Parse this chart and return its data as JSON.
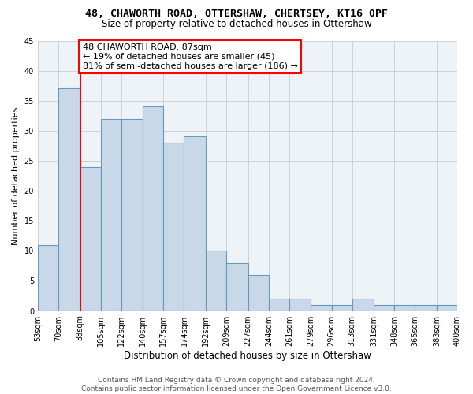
{
  "title1": "48, CHAWORTH ROAD, OTTERSHAW, CHERTSEY, KT16 0PF",
  "title2": "Size of property relative to detached houses in Ottershaw",
  "xlabel": "Distribution of detached houses by size in Ottershaw",
  "ylabel": "Number of detached properties",
  "bar_edges": [
    53,
    70,
    88,
    105,
    122,
    140,
    157,
    174,
    192,
    209,
    227,
    244,
    261,
    279,
    296,
    313,
    331,
    348,
    365,
    383,
    400
  ],
  "bar_heights": [
    11,
    37,
    24,
    32,
    32,
    34,
    28,
    29,
    10,
    8,
    6,
    2,
    2,
    1,
    1,
    2,
    1,
    1,
    1,
    1
  ],
  "bar_color": "#c8d8e8",
  "bar_edge_color": "#6699bb",
  "bar_linewidth": 0.8,
  "vline_x": 88,
  "vline_color": "red",
  "vline_linewidth": 1.5,
  "annotation_text": "48 CHAWORTH ROAD: 87sqm\n← 19% of detached houses are smaller (45)\n81% of semi-detached houses are larger (186) →",
  "annotation_box_color": "white",
  "annotation_box_edge_color": "red",
  "ylim": [
    0,
    45
  ],
  "xlim": [
    53,
    400
  ],
  "x_tick_labels": [
    "53sqm",
    "70sqm",
    "88sqm",
    "105sqm",
    "122sqm",
    "140sqm",
    "157sqm",
    "174sqm",
    "192sqm",
    "209sqm",
    "227sqm",
    "244sqm",
    "261sqm",
    "279sqm",
    "296sqm",
    "313sqm",
    "331sqm",
    "348sqm",
    "365sqm",
    "383sqm",
    "400sqm"
  ],
  "grid_color": "#cccccc",
  "background_color": "#eef3f8",
  "footer_text": "Contains HM Land Registry data © Crown copyright and database right 2024.\nContains public sector information licensed under the Open Government Licence v3.0.",
  "title1_fontsize": 9.5,
  "title2_fontsize": 8.5,
  "xlabel_fontsize": 8.5,
  "ylabel_fontsize": 8,
  "tick_fontsize": 7,
  "annotation_fontsize": 8,
  "footer_fontsize": 6.5
}
